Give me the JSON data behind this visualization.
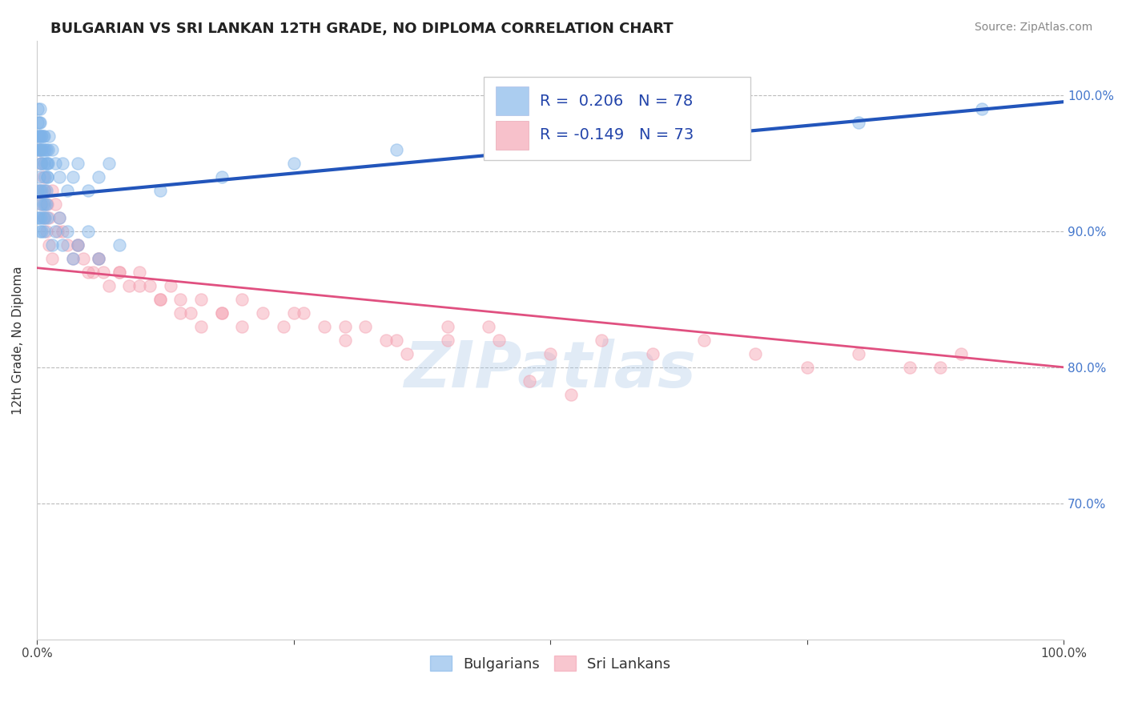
{
  "title": "BULGARIAN VS SRI LANKAN 12TH GRADE, NO DIPLOMA CORRELATION CHART",
  "source": "Source: ZipAtlas.com",
  "ylabel": "12th Grade, No Diploma",
  "xlim": [
    0.0,
    1.0
  ],
  "ylim": [
    0.6,
    1.04
  ],
  "ytick_positions": [
    0.7,
    0.8,
    0.9,
    1.0
  ],
  "ytick_labels": [
    "70.0%",
    "80.0%",
    "90.0%",
    "100.0%"
  ],
  "bulgarian_color": "#7fb3e8",
  "srilanka_color": "#f4a0b0",
  "blue_line_color": "#2255bb",
  "pink_line_color": "#e05080",
  "legend_R_blue": "R =  0.206",
  "legend_N_blue": "N = 78",
  "legend_R_pink": "R = -0.149",
  "legend_N_pink": "N = 73",
  "watermark": "ZIPatlas",
  "grid_color": "#bbbbbb",
  "bg_color": "#ffffff",
  "blue_line_x0": 0.0,
  "blue_line_y0": 0.925,
  "blue_line_x1": 1.0,
  "blue_line_y1": 0.995,
  "pink_line_x0": 0.0,
  "pink_line_y0": 0.873,
  "pink_line_x1": 1.0,
  "pink_line_y1": 0.8,
  "bulgarian_x": [
    0.001,
    0.002,
    0.001,
    0.002,
    0.001,
    0.002,
    0.001,
    0.002,
    0.003,
    0.003,
    0.003,
    0.004,
    0.004,
    0.004,
    0.005,
    0.005,
    0.005,
    0.006,
    0.006,
    0.007,
    0.007,
    0.008,
    0.008,
    0.009,
    0.009,
    0.01,
    0.01,
    0.011,
    0.011,
    0.012,
    0.001,
    0.002,
    0.003,
    0.004,
    0.005,
    0.006,
    0.007,
    0.008,
    0.009,
    0.01,
    0.001,
    0.002,
    0.003,
    0.004,
    0.005,
    0.006,
    0.007,
    0.008,
    0.009,
    0.01,
    0.015,
    0.018,
    0.022,
    0.025,
    0.03,
    0.035,
    0.04,
    0.05,
    0.06,
    0.07,
    0.015,
    0.018,
    0.022,
    0.025,
    0.03,
    0.035,
    0.04,
    0.05,
    0.06,
    0.08,
    0.12,
    0.18,
    0.25,
    0.35,
    0.5,
    0.65,
    0.8,
    0.92
  ],
  "bulgarian_y": [
    0.99,
    0.98,
    0.97,
    0.97,
    0.96,
    0.96,
    0.98,
    0.97,
    0.99,
    0.98,
    0.96,
    0.97,
    0.95,
    0.96,
    0.97,
    0.96,
    0.95,
    0.97,
    0.96,
    0.97,
    0.95,
    0.96,
    0.94,
    0.95,
    0.96,
    0.95,
    0.94,
    0.95,
    0.96,
    0.97,
    0.93,
    0.94,
    0.93,
    0.92,
    0.93,
    0.92,
    0.93,
    0.92,
    0.93,
    0.94,
    0.91,
    0.91,
    0.9,
    0.91,
    0.9,
    0.91,
    0.9,
    0.91,
    0.92,
    0.91,
    0.96,
    0.95,
    0.94,
    0.95,
    0.93,
    0.94,
    0.95,
    0.93,
    0.94,
    0.95,
    0.89,
    0.9,
    0.91,
    0.89,
    0.9,
    0.88,
    0.89,
    0.9,
    0.88,
    0.89,
    0.93,
    0.94,
    0.95,
    0.96,
    0.97,
    0.97,
    0.98,
    0.99
  ],
  "srilanka_x": [
    0.002,
    0.004,
    0.006,
    0.008,
    0.01,
    0.012,
    0.015,
    0.018,
    0.022,
    0.025,
    0.03,
    0.035,
    0.04,
    0.045,
    0.05,
    0.055,
    0.06,
    0.065,
    0.07,
    0.08,
    0.09,
    0.1,
    0.11,
    0.12,
    0.13,
    0.14,
    0.15,
    0.16,
    0.18,
    0.2,
    0.22,
    0.24,
    0.26,
    0.28,
    0.3,
    0.32,
    0.34,
    0.36,
    0.4,
    0.44,
    0.02,
    0.04,
    0.06,
    0.08,
    0.1,
    0.12,
    0.14,
    0.16,
    0.18,
    0.2,
    0.25,
    0.3,
    0.35,
    0.4,
    0.45,
    0.5,
    0.55,
    0.6,
    0.65,
    0.7,
    0.75,
    0.8,
    0.85,
    0.9,
    0.003,
    0.005,
    0.007,
    0.009,
    0.012,
    0.015,
    0.48,
    0.52,
    0.88
  ],
  "srilanka_y": [
    0.96,
    0.95,
    0.94,
    0.93,
    0.92,
    0.91,
    0.93,
    0.92,
    0.91,
    0.9,
    0.89,
    0.88,
    0.89,
    0.88,
    0.87,
    0.87,
    0.88,
    0.87,
    0.86,
    0.87,
    0.86,
    0.87,
    0.86,
    0.85,
    0.86,
    0.85,
    0.84,
    0.83,
    0.84,
    0.85,
    0.84,
    0.83,
    0.84,
    0.83,
    0.82,
    0.83,
    0.82,
    0.81,
    0.82,
    0.83,
    0.9,
    0.89,
    0.88,
    0.87,
    0.86,
    0.85,
    0.84,
    0.85,
    0.84,
    0.83,
    0.84,
    0.83,
    0.82,
    0.83,
    0.82,
    0.81,
    0.82,
    0.81,
    0.82,
    0.81,
    0.8,
    0.81,
    0.8,
    0.81,
    0.93,
    0.92,
    0.91,
    0.9,
    0.89,
    0.88,
    0.79,
    0.78,
    0.8
  ],
  "title_fontsize": 13,
  "axis_label_fontsize": 11,
  "tick_fontsize": 11,
  "legend_fontsize": 14,
  "source_fontsize": 10,
  "marker_size": 120,
  "marker_alpha": 0.45,
  "line_width": 2.0
}
